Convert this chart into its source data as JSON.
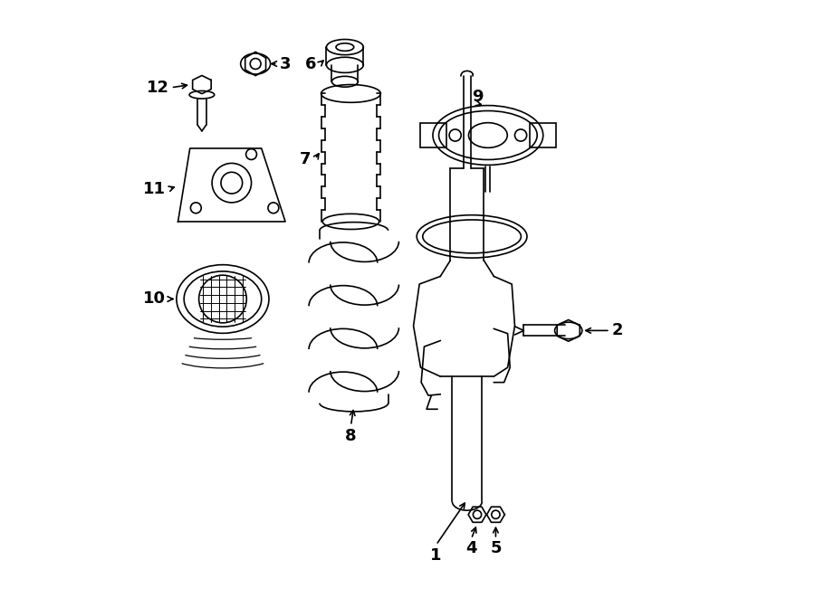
{
  "bg_color": "#ffffff",
  "line_color": "#000000",
  "label_color": "#000000",
  "figsize": [
    9.0,
    6.61
  ],
  "dpi": 100
}
